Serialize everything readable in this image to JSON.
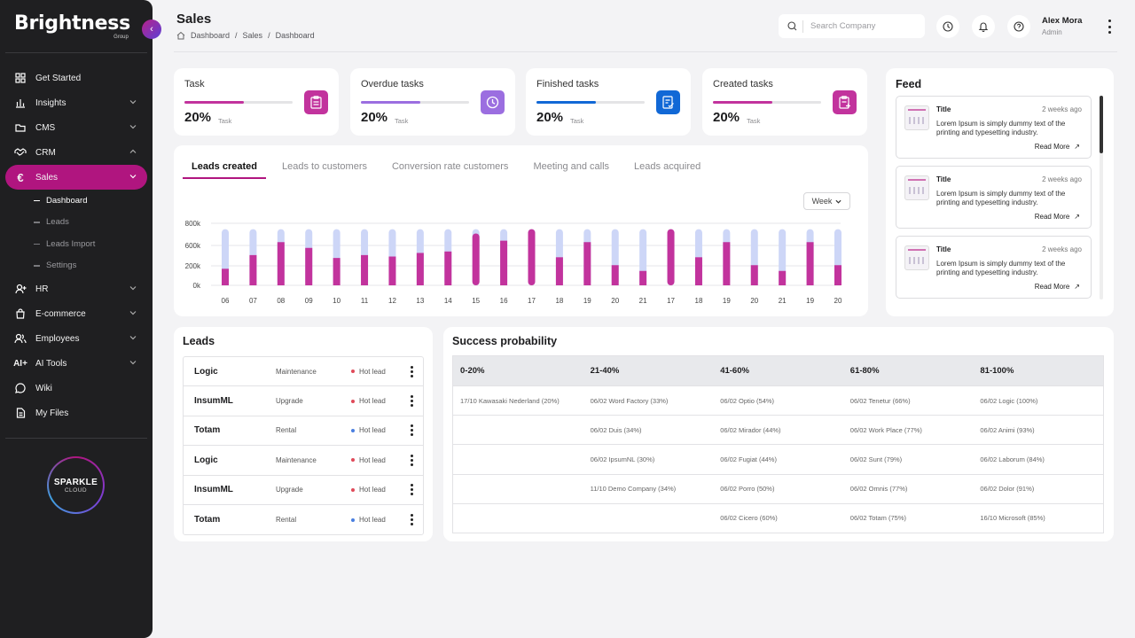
{
  "brand": {
    "name": "Brightness",
    "sub": "Group"
  },
  "sidebar": {
    "items": [
      {
        "label": "Get Started",
        "icon": "grid-icon"
      },
      {
        "label": "Insights",
        "icon": "chart-icon"
      },
      {
        "label": "CMS",
        "icon": "folder-icon"
      },
      {
        "label": "CRM",
        "icon": "handshake-icon"
      },
      {
        "label": "Sales",
        "icon": "euro-icon"
      },
      {
        "label": "HR",
        "icon": "user-plus-icon"
      },
      {
        "label": "E-commerce",
        "icon": "bag-icon"
      },
      {
        "label": "Employees",
        "icon": "users-icon"
      },
      {
        "label": "AI Tools",
        "icon": "ai-icon"
      },
      {
        "label": "Wiki",
        "icon": "chat-icon"
      },
      {
        "label": "My Files",
        "icon": "file-icon"
      }
    ],
    "sales_sub": [
      "Dashboard",
      "Leads",
      "Leads Import",
      "Settings"
    ],
    "sparkle": {
      "line1": "SPARKLE",
      "line2": "CLOUD"
    }
  },
  "header": {
    "title": "Sales",
    "breadcrumb": [
      "Dashboard",
      "Sales",
      "Dashboard"
    ],
    "search_placeholder": "Search Company",
    "user_name": "Alex Mora",
    "user_role": "Admin"
  },
  "tasks": [
    {
      "label": "Task",
      "value": "20%",
      "unit": "Task",
      "progress": 0.55,
      "color": "#c2339d",
      "icon": "clipboard-icon"
    },
    {
      "label": "Overdue tasks",
      "value": "20%",
      "unit": "Task",
      "progress": 0.55,
      "color": "#9b6ee0",
      "icon": "clock-icon"
    },
    {
      "label": "Finished tasks",
      "value": "20%",
      "unit": "Task",
      "progress": 0.55,
      "color": "#1168d6",
      "icon": "checklist-icon"
    },
    {
      "label": "Created tasks",
      "value": "20%",
      "unit": "Task",
      "progress": 0.55,
      "color": "#c2339d",
      "icon": "clipboard-plus-icon"
    }
  ],
  "chart": {
    "tabs": [
      "Leads created",
      "Leads to customers",
      "Conversion rate customers",
      "Meeting and calls",
      "Leads acquired"
    ],
    "week_label": "Week"
  },
  "chart_data": {
    "type": "bar",
    "categories": [
      "06",
      "07",
      "08",
      "09",
      "10",
      "11",
      "12",
      "13",
      "14",
      "15",
      "16",
      "17",
      "18",
      "19",
      "20",
      "21",
      "17",
      "18",
      "19",
      "20",
      "21",
      "19",
      "20"
    ],
    "series": [
      {
        "values": [
          230000,
          420000,
          600000,
          520000,
          380000,
          420000,
          400000,
          450000,
          470000,
          720000,
          620000,
          780000,
          390000,
          600000,
          280000,
          200000,
          780000,
          390000,
          600000,
          280000,
          200000,
          600000,
          280000
        ],
        "color": "#c2339d"
      },
      {
        "values": [
          780000,
          780000,
          780000,
          780000,
          780000,
          780000,
          780000,
          780000,
          780000,
          780000,
          780000,
          780000,
          780000,
          780000,
          780000,
          780000,
          780000,
          780000,
          780000,
          780000,
          780000,
          780000,
          780000
        ],
        "color": "#cdd6f7"
      }
    ],
    "yticks": [
      "800k",
      "600k",
      "200k",
      "0k"
    ],
    "ylim": [
      0,
      800000
    ],
    "stacked": false,
    "grid": true
  },
  "feed": {
    "title": "Feed",
    "items": [
      {
        "title": "Title",
        "time": "2 weeks ago",
        "text": "Lorem Ipsum is simply dummy text of the printing and typesetting industry.",
        "more": "Read More"
      },
      {
        "title": "Title",
        "time": "2 weeks ago",
        "text": "Lorem Ipsum is simply dummy text of the printing and typesetting industry.",
        "more": "Read More"
      },
      {
        "title": "Title",
        "time": "2 weeks ago",
        "text": "Lorem Ipsum is simply dummy text of the printing and typesetting industry.",
        "more": "Read More"
      }
    ]
  },
  "leads": {
    "title": "Leads",
    "rows": [
      {
        "name": "Logic",
        "type": "Maintenance",
        "status": "Hot lead",
        "dot": "#e04a5a"
      },
      {
        "name": "InsumML",
        "type": "Upgrade",
        "status": "Hot lead",
        "dot": "#e04a5a"
      },
      {
        "name": "Totam",
        "type": "Rental",
        "status": "Hot lead",
        "dot": "#4a7fe0"
      },
      {
        "name": "Logic",
        "type": "Maintenance",
        "status": "Hot lead",
        "dot": "#e04a5a"
      },
      {
        "name": "InsumML",
        "type": "Upgrade",
        "status": "Hot lead",
        "dot": "#e04a5a"
      },
      {
        "name": "Totam",
        "type": "Rental",
        "status": "Hot lead",
        "dot": "#4a7fe0"
      }
    ]
  },
  "success": {
    "title": "Success probability",
    "headers": [
      "0-20%",
      "21-40%",
      "41-60%",
      "61-80%",
      "81-100%"
    ],
    "rows": [
      [
        "17/10 Kawasaki Nederland (20%)",
        "06/02 Word Factory (33%)",
        "06/02 Optio (54%)",
        "06/02 Tenetur (66%)",
        "06/02 Logic (100%)"
      ],
      [
        "",
        "06/02 Duis  (34%)",
        "06/02 Mirador (44%)",
        "06/02 Work Place (77%)",
        "06/02 Animi (93%)"
      ],
      [
        "",
        "06/02 IpsumNL (30%)",
        "06/02 Fugiat (44%)",
        "06/02 Sunt (79%)",
        "06/02 Laborum (84%)"
      ],
      [
        "",
        "11/10 Demo Company (34%)",
        "06/02 Porro (50%)",
        "06/02 Omnis (77%)",
        "06/02 Dolor (91%)"
      ],
      [
        "",
        "",
        "06/02 Cicero (60%)",
        "06/02 Totam (75%)",
        "16/10 Microsoft (85%)"
      ]
    ]
  }
}
